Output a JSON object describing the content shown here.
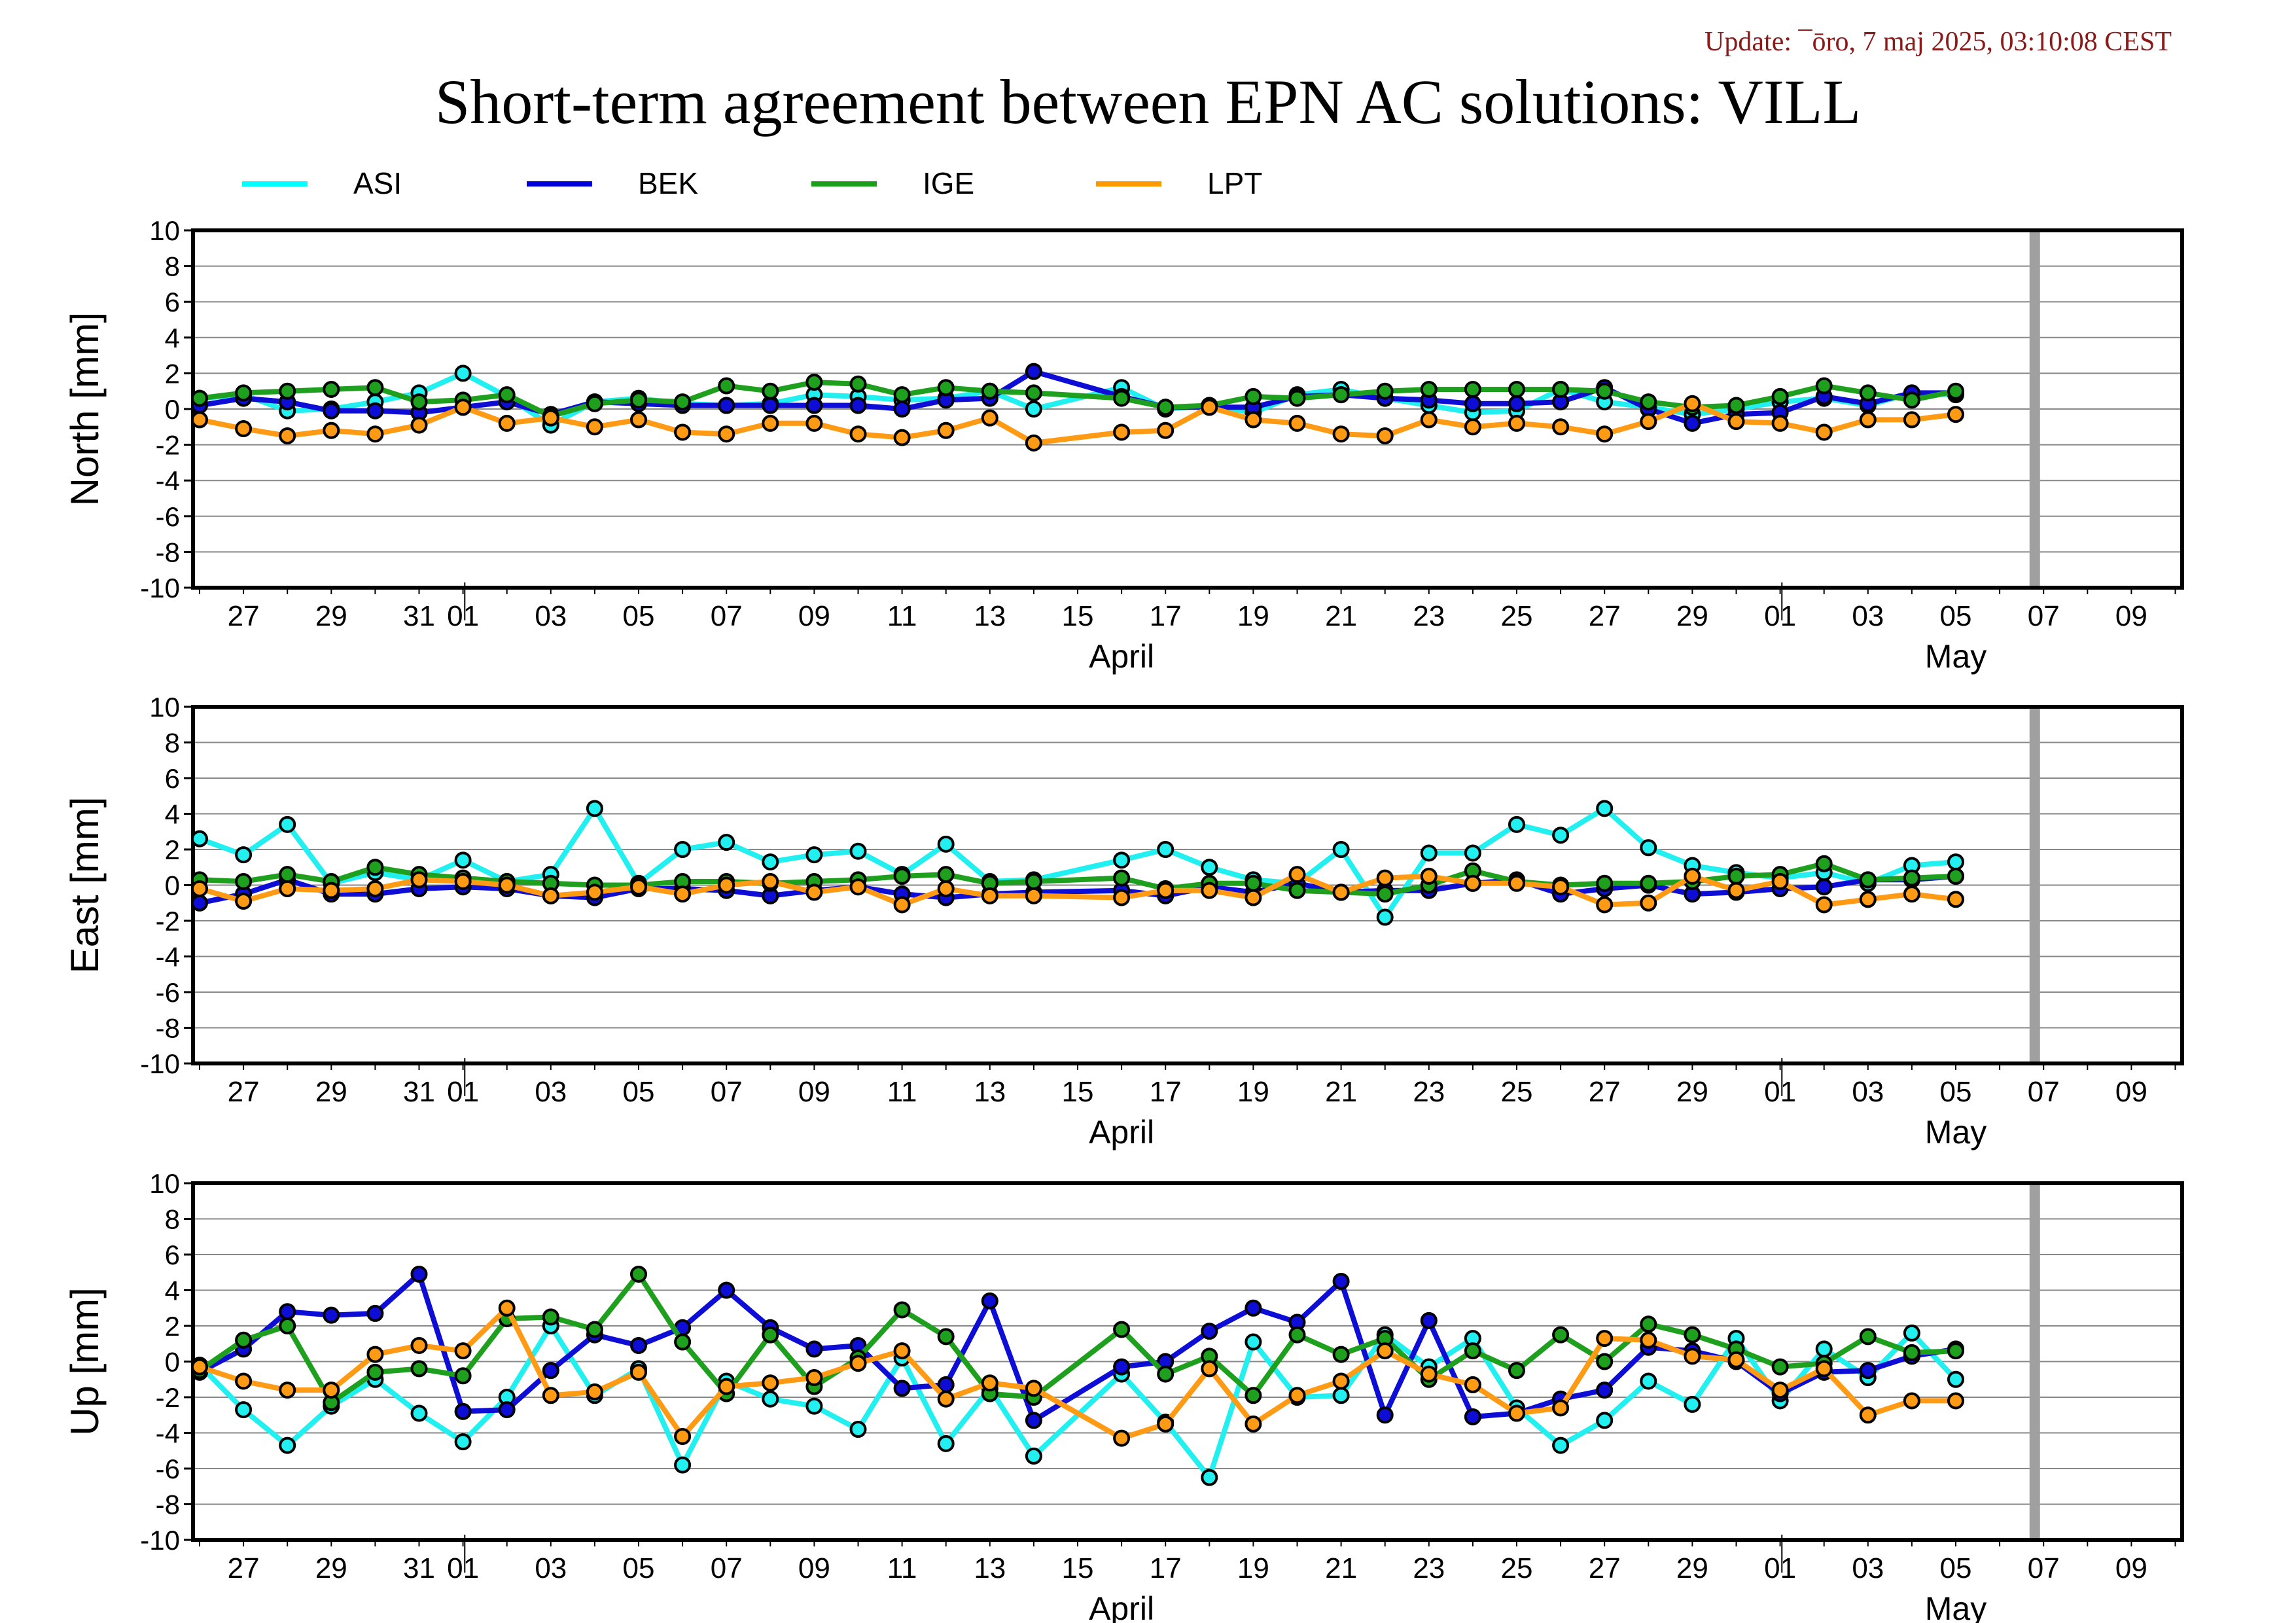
{
  "header": {
    "update": "Update: ¯ōro, 7 maj 2025, 03:10:08 CEST",
    "title": "Short-term agreement between EPN AC solutions: VILL"
  },
  "legend": [
    {
      "name": "ASI",
      "color": "#00ffff"
    },
    {
      "name": "BEK",
      "color": "#0000dd"
    },
    {
      "name": "IGE",
      "color": "#1a9f1a"
    },
    {
      "name": "LPT",
      "color": "#ff9900"
    }
  ],
  "colors": {
    "ASI": "#22f0f0",
    "BEK": "#0d0dd6",
    "IGE": "#1ea01e",
    "LPT": "#ff9a14",
    "gap_band": "#a0a0a0",
    "grid": "#888888"
  },
  "chart_data": [
    {
      "type": "line",
      "ylabel": "North [mm]",
      "ylim": [
        -10,
        10
      ],
      "yticks": [
        10,
        8,
        6,
        4,
        2,
        0,
        -2,
        -4,
        -6,
        -8,
        -10
      ],
      "x_tick_labels": [
        "27",
        "29",
        "31",
        "01",
        "03",
        "05",
        "07",
        "09",
        "11",
        "13",
        "15",
        "17",
        "19",
        "21",
        "23",
        "25",
        "27",
        "29",
        "01",
        "03",
        "05",
        "07",
        "09"
      ],
      "x_month_labels": [
        "April",
        "May"
      ],
      "x": [
        0,
        1,
        2,
        3,
        4,
        5,
        6,
        7,
        8,
        9,
        10,
        11,
        12,
        13,
        14,
        15,
        16,
        17,
        18,
        19,
        21,
        22,
        23,
        24,
        25,
        26,
        27,
        28,
        29,
        30,
        31,
        32,
        33,
        34,
        35,
        36,
        37,
        38,
        39,
        40
      ],
      "series": [
        {
          "name": "ASI",
          "values": [
            0.6,
            0.8,
            -0.1,
            0.0,
            0.4,
            0.9,
            2.0,
            0.7,
            -0.9,
            0.4,
            0.6,
            0.3,
            0.2,
            0.3,
            0.8,
            0.7,
            0.5,
            0.6,
            1.0,
            0.0,
            1.2,
            0.0,
            0.2,
            -0.2,
            0.8,
            1.1,
            0.6,
            0.2,
            -0.2,
            -0.1,
            1.1,
            0.4,
            0.1,
            -0.3,
            0.0,
            0.4,
            0.6,
            0.2,
            0.9,
            0.8
          ]
        },
        {
          "name": "BEK",
          "values": [
            0.2,
            0.6,
            0.4,
            -0.1,
            -0.1,
            -0.2,
            0.1,
            0.4,
            -0.3,
            0.4,
            0.3,
            0.2,
            0.2,
            0.2,
            0.2,
            0.2,
            0.0,
            0.5,
            0.6,
            2.1,
            0.7,
            0.1,
            0.1,
            0.1,
            0.7,
            0.8,
            0.6,
            0.5,
            0.3,
            0.3,
            0.4,
            1.2,
            0.0,
            -0.8,
            -0.3,
            -0.2,
            0.7,
            0.3,
            0.9,
            0.9
          ]
        },
        {
          "name": "IGE",
          "values": [
            0.6,
            0.9,
            1.0,
            1.1,
            1.2,
            0.4,
            0.5,
            0.8,
            -0.4,
            0.3,
            0.5,
            0.4,
            1.3,
            1.0,
            1.5,
            1.4,
            0.8,
            1.2,
            1.0,
            0.9,
            0.6,
            0.1,
            0.2,
            0.7,
            0.6,
            0.8,
            1.0,
            1.1,
            1.1,
            1.1,
            1.1,
            1.0,
            0.4,
            0.1,
            0.2,
            0.7,
            1.3,
            0.9,
            0.5,
            1.0
          ]
        },
        {
          "name": "LPT",
          "values": [
            -0.6,
            -1.1,
            -1.5,
            -1.2,
            -1.4,
            -0.9,
            0.1,
            -0.8,
            -0.5,
            -1.0,
            -0.6,
            -1.3,
            -1.4,
            -0.8,
            -0.8,
            -1.4,
            -1.6,
            -1.2,
            -0.5,
            -1.9,
            -1.3,
            -1.2,
            0.1,
            -0.6,
            -0.8,
            -1.4,
            -1.5,
            -0.6,
            -1.0,
            -0.8,
            -1.0,
            -1.4,
            -0.7,
            0.3,
            -0.7,
            -0.8,
            -1.3,
            -0.6,
            -0.6,
            -0.3
          ]
        }
      ]
    },
    {
      "type": "line",
      "ylabel": "East [mm]",
      "ylim": [
        -10,
        10
      ],
      "yticks": [
        10,
        8,
        6,
        4,
        2,
        0,
        -2,
        -4,
        -6,
        -8,
        -10
      ],
      "x_tick_labels": [
        "27",
        "29",
        "31",
        "01",
        "03",
        "05",
        "07",
        "09",
        "11",
        "13",
        "15",
        "17",
        "19",
        "21",
        "23",
        "25",
        "27",
        "29",
        "01",
        "03",
        "05",
        "07",
        "09"
      ],
      "x_month_labels": [
        "April",
        "May"
      ],
      "x": [
        0,
        1,
        2,
        3,
        4,
        5,
        6,
        7,
        8,
        9,
        10,
        11,
        12,
        13,
        14,
        15,
        16,
        17,
        18,
        19,
        21,
        22,
        23,
        24,
        25,
        26,
        27,
        28,
        29,
        30,
        31,
        32,
        33,
        34,
        35,
        36,
        37,
        38,
        39,
        40
      ],
      "series": [
        {
          "name": "ASI",
          "values": [
            2.6,
            1.7,
            3.4,
            0.1,
            0.7,
            0.3,
            1.4,
            0.2,
            0.6,
            4.3,
            0.1,
            2.0,
            2.4,
            1.3,
            1.7,
            1.9,
            0.6,
            2.3,
            0.2,
            0.3,
            1.4,
            2.0,
            1.0,
            0.3,
            0.1,
            2.0,
            -1.8,
            1.8,
            1.8,
            3.4,
            2.8,
            4.3,
            2.1,
            1.1,
            0.7,
            0.4,
            0.7,
            0.1,
            1.1,
            1.3
          ]
        },
        {
          "name": "BEK",
          "values": [
            -1.0,
            -0.5,
            0.3,
            -0.5,
            -0.5,
            -0.2,
            -0.1,
            -0.2,
            -0.6,
            -0.7,
            -0.2,
            -0.2,
            -0.3,
            -0.6,
            -0.3,
            -0.1,
            -0.5,
            -0.7,
            -0.5,
            -0.4,
            -0.3,
            -0.6,
            -0.1,
            -0.4,
            0.1,
            -0.4,
            -0.3,
            -0.3,
            0.1,
            0.3,
            -0.5,
            -0.2,
            0.0,
            -0.5,
            -0.4,
            -0.2,
            -0.1,
            0.3,
            0.3,
            0.5
          ]
        },
        {
          "name": "IGE",
          "values": [
            0.3,
            0.2,
            0.6,
            0.2,
            1.0,
            0.6,
            0.4,
            0.2,
            0.1,
            0.0,
            0.0,
            0.2,
            0.2,
            0.1,
            0.2,
            0.3,
            0.5,
            0.6,
            0.1,
            0.2,
            0.4,
            -0.2,
            0.1,
            0.1,
            -0.3,
            -0.4,
            -0.5,
            0.0,
            0.8,
            0.2,
            0.0,
            0.1,
            0.1,
            0.2,
            0.5,
            0.6,
            1.2,
            0.3,
            0.4,
            0.5
          ]
        },
        {
          "name": "LPT",
          "values": [
            -0.2,
            -0.9,
            -0.2,
            -0.3,
            -0.2,
            0.3,
            0.2,
            0.0,
            -0.6,
            -0.4,
            -0.1,
            -0.5,
            0.0,
            0.2,
            -0.4,
            -0.1,
            -1.1,
            -0.2,
            -0.6,
            -0.6,
            -0.7,
            -0.3,
            -0.3,
            -0.7,
            0.6,
            -0.4,
            0.4,
            0.5,
            0.1,
            0.1,
            -0.1,
            -1.1,
            -1.0,
            0.5,
            -0.3,
            0.2,
            -1.1,
            -0.8,
            -0.5,
            -0.8
          ]
        }
      ]
    },
    {
      "type": "line",
      "ylabel": "Up [mm]",
      "ylim": [
        -10,
        10
      ],
      "yticks": [
        10,
        8,
        6,
        4,
        2,
        0,
        -2,
        -4,
        -6,
        -8,
        -10
      ],
      "x_tick_labels": [
        "27",
        "29",
        "31",
        "01",
        "03",
        "05",
        "07",
        "09",
        "11",
        "13",
        "15",
        "17",
        "19",
        "21",
        "23",
        "25",
        "27",
        "29",
        "01",
        "03",
        "05",
        "07",
        "09"
      ],
      "x_month_labels": [
        "April",
        "May"
      ],
      "x": [
        0,
        1,
        2,
        3,
        4,
        5,
        6,
        7,
        8,
        9,
        10,
        11,
        12,
        13,
        14,
        15,
        16,
        17,
        18,
        19,
        21,
        22,
        23,
        24,
        25,
        26,
        27,
        28,
        29,
        30,
        31,
        32,
        33,
        34,
        35,
        36,
        37,
        38,
        39,
        40
      ],
      "series": [
        {
          "name": "ASI",
          "values": [
            -0.2,
            -2.7,
            -4.7,
            -2.5,
            -1.0,
            -2.9,
            -4.5,
            -2.0,
            2.0,
            -1.9,
            -0.4,
            -5.8,
            -1.1,
            -2.1,
            -2.5,
            -3.8,
            0.2,
            -4.6,
            -1.5,
            -5.3,
            -0.7,
            -3.4,
            -6.5,
            1.1,
            -2.0,
            -1.9,
            1.5,
            -0.3,
            1.3,
            -2.6,
            -4.7,
            -3.3,
            -1.1,
            -2.4,
            1.3,
            -2.2,
            0.7,
            -0.9,
            1.6,
            -1.0
          ]
        },
        {
          "name": "BEK",
          "values": [
            -0.6,
            0.7,
            2.8,
            2.6,
            2.7,
            4.9,
            -2.8,
            -2.7,
            -0.5,
            1.5,
            0.9,
            1.9,
            4.0,
            1.9,
            0.7,
            0.9,
            -1.5,
            -1.3,
            3.4,
            -3.3,
            -0.3,
            0.0,
            1.7,
            3.0,
            2.2,
            4.5,
            -3.0,
            2.3,
            -3.1,
            -2.9,
            -2.1,
            -1.6,
            0.8,
            0.6,
            0.0,
            -1.8,
            -0.6,
            -0.5,
            0.3,
            0.7
          ]
        },
        {
          "name": "IGE",
          "values": [
            -0.5,
            1.2,
            2.0,
            -2.3,
            -0.6,
            -0.4,
            -0.8,
            2.4,
            2.5,
            1.8,
            4.9,
            1.1,
            -1.8,
            1.5,
            -1.4,
            0.2,
            2.9,
            1.4,
            -1.8,
            -2.0,
            1.8,
            -0.7,
            0.3,
            -1.9,
            1.5,
            0.4,
            1.3,
            -1.0,
            0.6,
            -0.5,
            1.5,
            0.0,
            2.1,
            1.5,
            0.7,
            -0.3,
            -0.1,
            1.4,
            0.5,
            0.6
          ]
        },
        {
          "name": "LPT",
          "values": [
            -0.3,
            -1.1,
            -1.6,
            -1.6,
            0.4,
            0.9,
            0.6,
            3.0,
            -1.9,
            -1.7,
            -0.6,
            -4.2,
            -1.4,
            -1.2,
            -0.9,
            -0.1,
            0.6,
            -2.1,
            -1.2,
            -1.5,
            -4.3,
            -3.5,
            -0.4,
            -3.5,
            -1.9,
            -1.1,
            0.6,
            -0.7,
            -1.3,
            -2.9,
            -2.6,
            1.3,
            1.2,
            0.3,
            0.1,
            -1.6,
            -0.4,
            -3.0,
            -2.2,
            -2.2
          ]
        }
      ]
    }
  ]
}
